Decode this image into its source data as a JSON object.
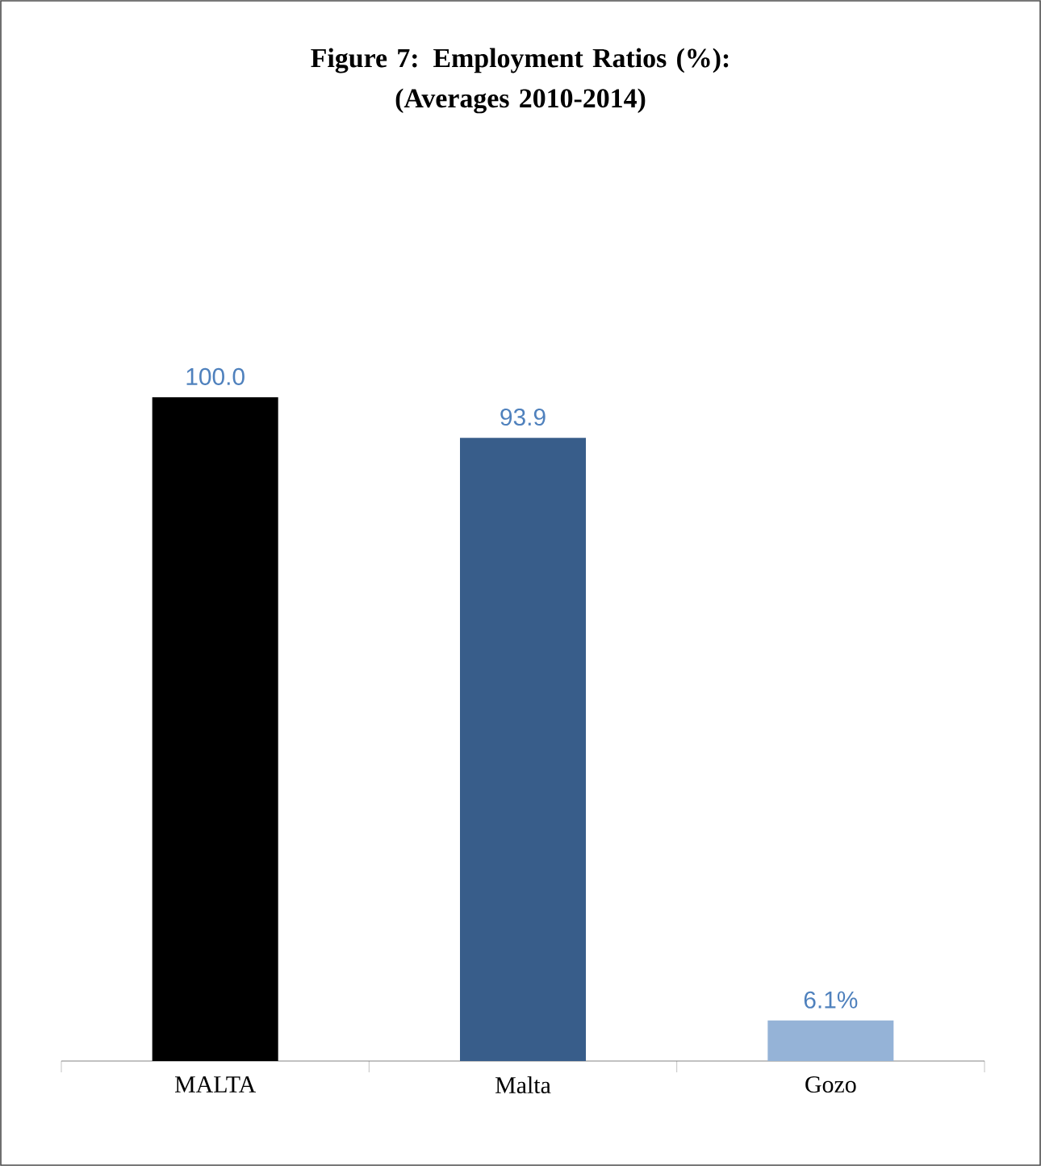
{
  "chart_data": {
    "type": "bar",
    "title": "Figure 7: Employment Ratios (%):\n(Averages 2010-2014)",
    "categories": [
      "MALTA",
      "Malta",
      "Gozo"
    ],
    "values": [
      100.0,
      93.9,
      6.1
    ],
    "value_labels": [
      "100.0",
      "93.9",
      "6.1%"
    ],
    "colors": [
      "#000000",
      "#385d8a",
      "#95b3d7"
    ]
  }
}
